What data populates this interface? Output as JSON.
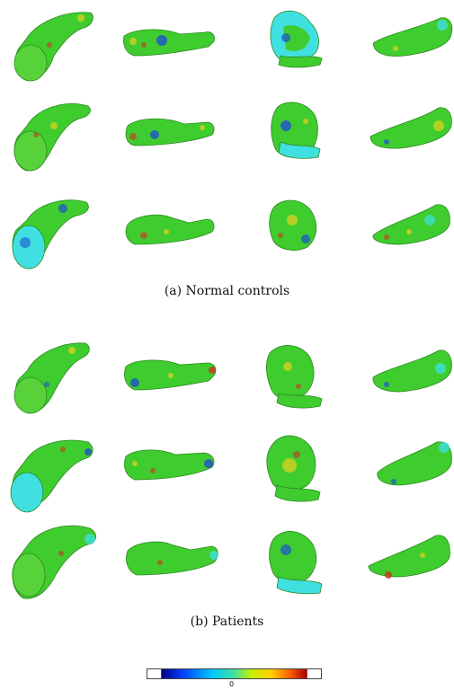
{
  "figure": {
    "captions": {
      "controls": "(a) Normal controls",
      "patients": "(b) Patients"
    },
    "colorbar": {
      "tick_label": "0",
      "colors": [
        "#000080",
        "#0040ff",
        "#00c8ff",
        "#40e0a0",
        "#c8f000",
        "#ffd000",
        "#ff6000",
        "#a00000"
      ]
    },
    "surface_colors": {
      "base": "#3fcc2e",
      "blue": "#2050d0",
      "cyan": "#40e0e0",
      "yellow": "#e8d020",
      "red": "#d03020"
    },
    "panels": {
      "controls": {
        "rows": 3,
        "cols": 4
      },
      "patients": {
        "rows": 3,
        "cols": 4
      }
    }
  }
}
